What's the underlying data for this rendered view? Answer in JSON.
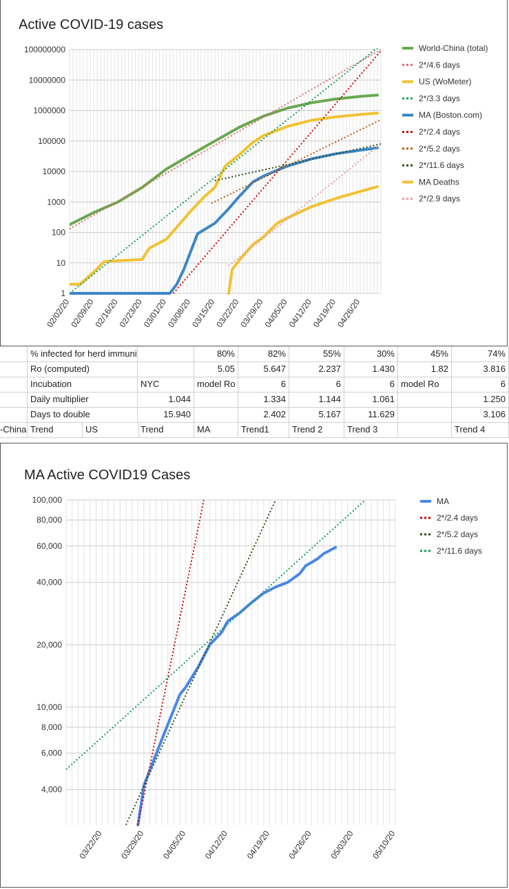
{
  "chart_data": [
    {
      "type": "line",
      "title": "Active COVID-19 cases",
      "y_scale": "log",
      "ylim": [
        1,
        100000000
      ],
      "y_ticks": [
        "1",
        "10",
        "100",
        "1000",
        "10000",
        "100000",
        "1000000",
        "10000000",
        "100000000"
      ],
      "x_ticks": [
        "02/02/20",
        "02/09/20",
        "02/16/20",
        "02/23/20",
        "03/01/20",
        "03/08/20",
        "03/15/20",
        "03/22/20",
        "03/29/20",
        "04/05/20",
        "04/12/20",
        "04/19/20",
        "04/26/20"
      ],
      "legend_position": "right",
      "series": [
        {
          "name": "World-China (total)",
          "color": "#6aa84f",
          "style": "solid",
          "x": [
            "02/02/20",
            "02/09/20",
            "02/16/20",
            "02/23/20",
            "03/01/20",
            "03/08/20",
            "03/15/20",
            "03/22/20",
            "03/29/20",
            "04/05/20",
            "04/12/20",
            "04/19/20",
            "04/26/20",
            "05/01/20"
          ],
          "values": [
            180,
            450,
            1000,
            3000,
            12000,
            35000,
            100000,
            280000,
            650000,
            1200000,
            1800000,
            2400000,
            2900000,
            3200000
          ]
        },
        {
          "name": "2*/4.6 days",
          "color": "#e06666",
          "style": "dotted",
          "x": [
            "02/02/20",
            "05/02/20"
          ],
          "values": [
            130,
            100000000
          ]
        },
        {
          "name": "US (WoMeter)",
          "color": "#f1c232",
          "style": "solid",
          "x": [
            "02/02/20",
            "02/05/20",
            "02/09/20",
            "02/12/20",
            "02/23/20",
            "02/25/20",
            "03/01/20",
            "03/05/20",
            "03/08/20",
            "03/12/20",
            "03/15/20",
            "03/18/20",
            "03/22/20",
            "03/26/20",
            "03/29/20",
            "04/05/20",
            "04/12/20",
            "04/19/20",
            "04/26/20",
            "05/01/20"
          ],
          "values": [
            2,
            2,
            5,
            11,
            13,
            30,
            60,
            200,
            500,
            1500,
            3000,
            15000,
            35000,
            90000,
            150000,
            300000,
            480000,
            620000,
            740000,
            820000
          ]
        },
        {
          "name": "2*/3.3 days",
          "color": "#0f9d58",
          "style": "dotted",
          "x": [
            "02/02/20",
            "05/02/20"
          ],
          "values": [
            1,
            140000000
          ]
        },
        {
          "name": "MA (Boston.com)",
          "color": "#3d85c6",
          "style": "solid",
          "x": [
            "02/02/20",
            "03/02/20",
            "03/04/20",
            "03/06/20",
            "03/10/20",
            "03/15/20",
            "03/19/20",
            "03/22/20",
            "03/26/20",
            "03/29/20",
            "04/02/20",
            "04/05/20",
            "04/12/20",
            "04/19/20",
            "04/26/20",
            "05/01/20"
          ],
          "values": [
            1,
            1,
            2,
            6,
            90,
            200,
            600,
            1500,
            4500,
            7000,
            11000,
            15000,
            26000,
            38000,
            50000,
            60000
          ]
        },
        {
          "name": "2*/2.4 days",
          "color": "#cc0000",
          "style": "dotted",
          "x": [
            "03/03/20",
            "05/02/20"
          ],
          "values": [
            1,
            90000000
          ]
        },
        {
          "name": "2*/5.2 days",
          "color": "#b45f06",
          "style": "dotted",
          "x": [
            "03/14/20",
            "05/02/20"
          ],
          "values": [
            900,
            500000
          ]
        },
        {
          "name": "2*/11.6 days",
          "color": "#274e13",
          "style": "dotted",
          "x": [
            "03/15/20",
            "05/02/20"
          ],
          "values": [
            5000,
            80000
          ]
        },
        {
          "name": "MA Deaths",
          "color": "#f1c232",
          "style": "solid",
          "x": [
            "03/19/20",
            "03/20/20",
            "03/22/20",
            "03/26/20",
            "03/29/20",
            "04/02/20",
            "04/05/20",
            "04/12/20",
            "04/19/20",
            "04/26/20",
            "05/01/20"
          ],
          "values": [
            1,
            6,
            12,
            40,
            70,
            200,
            300,
            700,
            1300,
            2200,
            3200
          ]
        },
        {
          "name": "2*/2.9 days",
          "color": "#ea9999",
          "style": "dotted",
          "x": [
            "03/19/20",
            "05/02/20"
          ],
          "values": [
            8,
            80000
          ]
        }
      ]
    },
    {
      "type": "line",
      "title": "MA Active COVID19 Cases",
      "y_scale": "log",
      "ylim": [
        2700,
        100000
      ],
      "y_ticks": [
        "4,000",
        "6,000",
        "8,000",
        "10,000",
        "20,000",
        "40,000",
        "60,000",
        "80,000",
        "100,000"
      ],
      "x_ticks": [
        "03/22/20",
        "03/29/20",
        "04/05/20",
        "04/12/20",
        "04/19/20",
        "04/26/20",
        "05/03/20",
        "05/10/20"
      ],
      "legend_position": "right",
      "series": [
        {
          "name": "MA",
          "color": "#4a86e8",
          "style": "solid",
          "x": [
            "03/28/20",
            "03/29/20",
            "04/01/20",
            "04/04/20",
            "04/05/20",
            "04/07/20",
            "04/09/20",
            "04/11/20",
            "04/12/20",
            "04/14/20",
            "04/16/20",
            "04/18/20",
            "04/20/20",
            "04/22/20",
            "04/24/20",
            "04/25/20",
            "04/27/20",
            "04/28/20",
            "04/30/20"
          ],
          "values": [
            2700,
            4200,
            7000,
            11500,
            12500,
            15500,
            20000,
            23000,
            26000,
            28500,
            32000,
            35500,
            38000,
            40000,
            44000,
            48000,
            52000,
            55000,
            59000
          ]
        },
        {
          "name": "2*/2.4 days",
          "color": "#cc0000",
          "style": "dotted",
          "x": [
            "03/28/20",
            "04/08/20"
          ],
          "values": [
            2700,
            100000
          ]
        },
        {
          "name": "2*/5.2 days",
          "color": "#274e13",
          "style": "dotted",
          "x": [
            "03/26/20",
            "04/20/20"
          ],
          "values": [
            2700,
            100000
          ]
        },
        {
          "name": "2*/11.6 days",
          "color": "#0f9d58",
          "style": "dotted",
          "x": [
            "03/16/20",
            "05/05/20"
          ],
          "values": [
            5000,
            100000
          ]
        }
      ]
    }
  ],
  "sheet": {
    "rows": [
      [
        "",
        "% infected for herd immunity to start",
        "",
        "80%",
        "82%",
        "55%",
        "30%",
        "45%",
        "74%"
      ],
      [
        "",
        "Ro (computed)",
        "",
        "5.05",
        "5.647",
        "2.237",
        "1.430",
        "1.82",
        "3.816"
      ],
      [
        "",
        "Incubation",
        "NYC",
        "model Ro",
        "6",
        "6",
        "6",
        "model Ro",
        "6"
      ],
      [
        "",
        "Daily multiplier",
        "1.044",
        "",
        "1.334",
        "1.144",
        "1.061",
        "",
        "1.250"
      ],
      [
        "",
        "Days to double",
        "15.940",
        "",
        "2.402",
        "5.167",
        "11.629",
        "",
        "3.106"
      ],
      [
        "-China",
        "Trend",
        "US",
        "Trend",
        "MA",
        "Trend1",
        "Trend 2",
        "Trend 3",
        "",
        "Trend 4"
      ]
    ]
  }
}
